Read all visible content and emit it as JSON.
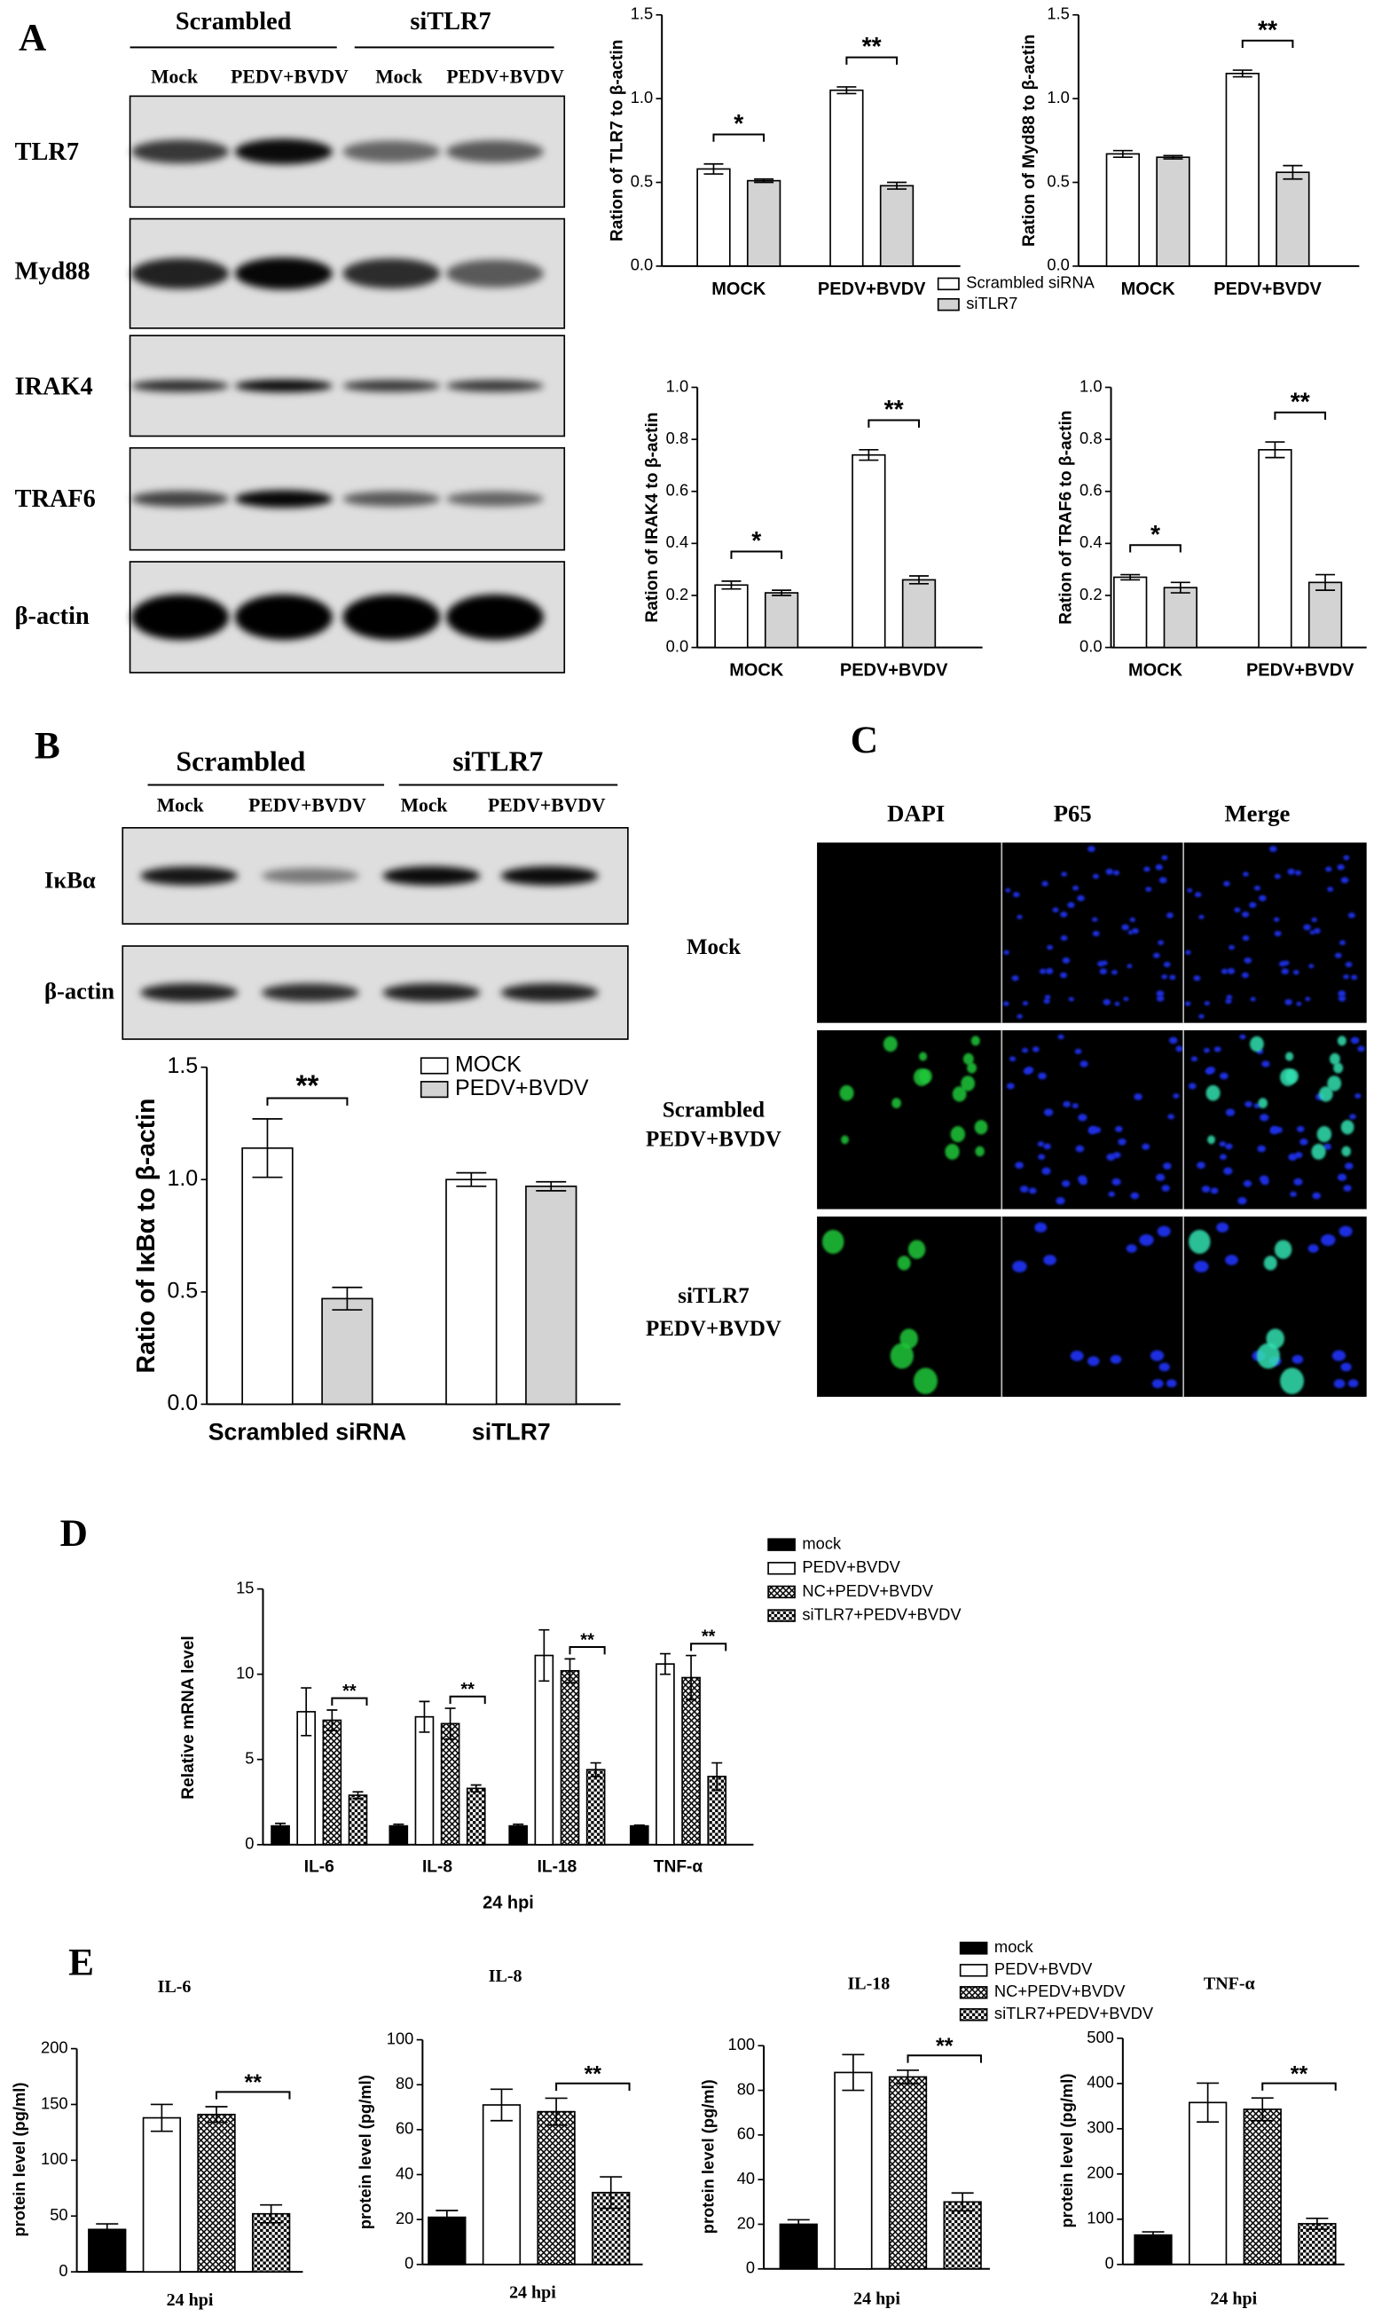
{
  "panel_labels": [
    "A",
    "B",
    "C",
    "D",
    "E"
  ],
  "blot_a": {
    "groups": [
      "Scrambled",
      "siTLR7"
    ],
    "lanes": [
      "Mock",
      "PEDV+BVDV",
      "Mock",
      "PEDV+BVDV"
    ],
    "rows": [
      "TLR7",
      "Myd88",
      "IRAK4",
      "TRAF6",
      "β-actin"
    ]
  },
  "blot_b": {
    "groups": [
      "Scrambled",
      "siTLR7"
    ],
    "lanes": [
      "Mock",
      "PEDV+BVDV",
      "Mock",
      "PEDV+BVDV"
    ],
    "rows": [
      "IκBα",
      "β-actin"
    ]
  },
  "imaging_c": {
    "columns": [
      "DAPI",
      "P65",
      "Merge"
    ],
    "rows": [
      [
        "Mock"
      ],
      [
        "Scrambled",
        "PEDV+BVDV"
      ],
      [
        "siTLR7",
        "PEDV+BVDV"
      ]
    ]
  },
  "chart_data": [
    {
      "type": "bar",
      "y_label": "Ration of TLR7 to β-actin",
      "categories": [
        "MOCK",
        "PEDV+BVDV"
      ],
      "series": [
        {
          "name": "Scrambled siRNA",
          "color": "#ffffff",
          "values": [
            0.58,
            1.05
          ],
          "errors": [
            0.03,
            0.02
          ]
        },
        {
          "name": "siTLR7",
          "color": "#d3d3d3",
          "values": [
            0.51,
            0.48
          ],
          "errors": [
            0.01,
            0.02
          ]
        }
      ],
      "ylim": [
        0,
        1.5
      ],
      "yticks": [
        {
          "value": 0,
          "label": "0.0"
        },
        0.5,
        {
          "value": 1,
          "label": "1.0"
        },
        1.5
      ],
      "significance": [
        "*",
        "**"
      ]
    },
    {
      "type": "bar",
      "y_label": "Ration of Myd88 to β-actin",
      "categories": [
        "MOCK",
        "PEDV+BVDV"
      ],
      "series": [
        {
          "color": "#ffffff",
          "values": [
            0.67,
            1.15
          ],
          "errors": [
            0.02,
            0.02
          ]
        },
        {
          "color": "#d3d3d3",
          "values": [
            0.65,
            0.56
          ],
          "errors": [
            0.01,
            0.04
          ]
        }
      ],
      "ylim": [
        0,
        1.5
      ],
      "yticks": [
        {
          "value": 0,
          "label": "0.0"
        },
        0.5,
        {
          "value": 1,
          "label": "1.0"
        },
        1.5
      ],
      "significance": [
        null,
        "**"
      ]
    },
    {
      "type": "bar",
      "y_label": "Ration of IRAK4 to β-actin",
      "categories": [
        "MOCK",
        "PEDV+BVDV"
      ],
      "series": [
        {
          "color": "#ffffff",
          "values": [
            0.24,
            0.74
          ],
          "errors": [
            0.015,
            0.02
          ]
        },
        {
          "color": "#d3d3d3",
          "values": [
            0.21,
            0.26
          ],
          "errors": [
            0.01,
            0.015
          ]
        }
      ],
      "ylim": [
        0,
        1
      ],
      "yticks": [
        {
          "value": 0,
          "label": "0.0"
        },
        0.2,
        0.4,
        0.6,
        0.8,
        {
          "value": 1,
          "label": "1.0"
        }
      ],
      "significance": [
        "*",
        "**"
      ]
    },
    {
      "type": "bar",
      "y_label": "Ration of TRAF6 to β-actin",
      "categories": [
        "MOCK",
        "PEDV+BVDV"
      ],
      "series": [
        {
          "color": "#ffffff",
          "values": [
            0.27,
            0.76
          ],
          "errors": [
            0.01,
            0.03
          ]
        },
        {
          "color": "#d3d3d3",
          "values": [
            0.23,
            0.25
          ],
          "errors": [
            0.02,
            0.03
          ]
        }
      ],
      "ylim": [
        0,
        1
      ],
      "yticks": [
        {
          "value": 0,
          "label": "0.0"
        },
        0.2,
        0.4,
        0.6,
        0.8,
        {
          "value": 1,
          "label": "1.0"
        }
      ],
      "significance": [
        "*",
        "**"
      ]
    },
    {
      "type": "bar",
      "y_label": "Ratio of  IκBα to β-actin",
      "categories": [
        "Scrambled siRNA",
        "siTLR7"
      ],
      "series": [
        {
          "name": "MOCK",
          "color": "#ffffff",
          "values": [
            1.14,
            1.0
          ],
          "errors": [
            0.13,
            0.03
          ]
        },
        {
          "name": "PEDV+BVDV",
          "color": "#d3d3d3",
          "values": [
            0.47,
            0.97
          ],
          "errors": [
            0.05,
            0.02
          ]
        }
      ],
      "ylim": [
        0,
        1.5
      ],
      "yticks": [
        {
          "value": 0,
          "label": "0.0"
        },
        0.5,
        {
          "value": 1,
          "label": "1.0"
        },
        1.5
      ],
      "significance": [
        "**",
        null
      ]
    },
    {
      "type": "bar",
      "y_label": "Relative mRNA level",
      "x_label": "24 hpi",
      "categories": [
        "IL-6",
        "IL-8",
        "IL-18",
        "TNF-α"
      ],
      "series": [
        {
          "name": "mock",
          "color": "#000000",
          "values": [
            1.1,
            1.1,
            1.1,
            1.1
          ],
          "errors": [
            0.15,
            0.1,
            0.1,
            0.05
          ]
        },
        {
          "name": "PEDV+BVDV",
          "color": "#ffffff",
          "values": [
            7.8,
            7.5,
            11.1,
            10.6
          ],
          "errors": [
            1.4,
            0.9,
            1.5,
            0.6
          ]
        },
        {
          "name": "NC+PEDV+BVDV",
          "color": "#000000",
          "pattern": "crosshatch",
          "values": [
            7.3,
            7.1,
            10.2,
            9.8
          ],
          "errors": [
            0.6,
            0.9,
            0.7,
            1.3
          ]
        },
        {
          "name": "siTLR7+PEDV+BVDV",
          "color": "#000000",
          "pattern": "checker",
          "values": [
            2.9,
            3.3,
            4.4,
            4.0
          ],
          "errors": [
            0.2,
            0.2,
            0.4,
            0.8
          ]
        }
      ],
      "ylim": [
        0,
        15
      ],
      "yticks": [
        0,
        5,
        10,
        15
      ],
      "significance": [
        "**",
        "**",
        "**",
        "**"
      ]
    },
    {
      "type": "bar",
      "title": "IL-6",
      "y_label": "protein level (pg/ml)",
      "x_label": "24 hpi",
      "series": [
        {
          "color": "#000000",
          "values": [
            38
          ],
          "errors": [
            5
          ]
        },
        {
          "color": "#ffffff",
          "values": [
            138
          ],
          "errors": [
            12
          ]
        },
        {
          "color": "#000000",
          "pattern": "crosshatch",
          "values": [
            141
          ],
          "errors": [
            7
          ]
        },
        {
          "color": "#000000",
          "pattern": "checker",
          "values": [
            52
          ],
          "errors": [
            8
          ]
        }
      ],
      "ylim": [
        0,
        200
      ],
      "yticks": [
        0,
        50,
        100,
        150,
        200
      ],
      "significance": "**"
    },
    {
      "type": "bar",
      "title": "IL-8",
      "y_label": "protein level (pg/ml)",
      "x_label": "24 hpi",
      "series": [
        {
          "color": "#000000",
          "values": [
            21
          ],
          "errors": [
            3
          ]
        },
        {
          "color": "#ffffff",
          "values": [
            71
          ],
          "errors": [
            7
          ]
        },
        {
          "color": "#000000",
          "pattern": "crosshatch",
          "values": [
            68
          ],
          "errors": [
            6
          ]
        },
        {
          "color": "#000000",
          "pattern": "checker",
          "values": [
            32
          ],
          "errors": [
            7
          ]
        }
      ],
      "ylim": [
        0,
        100
      ],
      "yticks": [
        0,
        20,
        40,
        60,
        80,
        100
      ],
      "significance": "**"
    },
    {
      "type": "bar",
      "title": "IL-18",
      "y_label": "protein level (pg/ml)",
      "x_label": "24 hpi",
      "series": [
        {
          "color": "#000000",
          "values": [
            20
          ],
          "errors": [
            2
          ]
        },
        {
          "color": "#ffffff",
          "values": [
            88
          ],
          "errors": [
            8
          ]
        },
        {
          "color": "#000000",
          "pattern": "crosshatch",
          "values": [
            86
          ],
          "errors": [
            3
          ]
        },
        {
          "color": "#000000",
          "pattern": "checker",
          "values": [
            30
          ],
          "errors": [
            4
          ]
        }
      ],
      "ylim": [
        0,
        100
      ],
      "yticks": [
        0,
        20,
        40,
        60,
        80,
        100
      ],
      "significance": "**"
    },
    {
      "type": "bar",
      "title": "TNF-α",
      "y_label": "protein level (pg/ml)",
      "x_label": "24 hpi",
      "series": [
        {
          "name": "mock",
          "color": "#000000",
          "values": [
            65
          ],
          "errors": [
            7
          ]
        },
        {
          "name": "PEDV+BVDV",
          "color": "#ffffff",
          "values": [
            358
          ],
          "errors": [
            43
          ]
        },
        {
          "name": "NC+PEDV+BVDV",
          "color": "#000000",
          "pattern": "crosshatch",
          "values": [
            343
          ],
          "errors": [
            25
          ]
        },
        {
          "name": "siTLR7+PEDV+BVDV",
          "color": "#000000",
          "pattern": "checker",
          "values": [
            90
          ],
          "errors": [
            12
          ]
        }
      ],
      "ylim": [
        0,
        500
      ],
      "yticks": [
        0,
        100,
        200,
        300,
        400,
        500
      ],
      "significance": "**"
    }
  ]
}
